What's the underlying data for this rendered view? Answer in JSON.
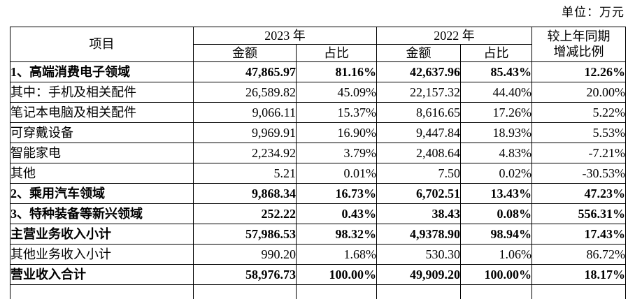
{
  "unit_label": "单位：万元",
  "table": {
    "header": {
      "item": "项目",
      "year_2023": "2023 年",
      "year_2022": "2022 年",
      "amount": "金额",
      "ratio": "占比",
      "yoy_line1": "较上年同期",
      "yoy_line2": "增减比例"
    },
    "rows": [
      {
        "item": "1、高端消费电子领域",
        "amount_2023": "47,865.97",
        "ratio_2023": "81.16%",
        "amount_2022": "42,637.96",
        "ratio_2022": "85.43%",
        "yoy": "12.26%",
        "bold": true
      },
      {
        "item": "其中：手机及相关配件",
        "amount_2023": "26,589.82",
        "ratio_2023": "45.09%",
        "amount_2022": "22,157.32",
        "ratio_2022": "44.40%",
        "yoy": "20.00%",
        "bold": false
      },
      {
        "item": "笔记本电脑及相关配件",
        "amount_2023": "9,066.11",
        "ratio_2023": "15.37%",
        "amount_2022": "8,616.65",
        "ratio_2022": "17.26%",
        "yoy": "5.22%",
        "bold": false
      },
      {
        "item": "可穿戴设备",
        "amount_2023": "9,969.91",
        "ratio_2023": "16.90%",
        "amount_2022": "9,447.84",
        "ratio_2022": "18.93%",
        "yoy": "5.53%",
        "bold": false
      },
      {
        "item": "智能家电",
        "amount_2023": "2,234.92",
        "ratio_2023": "3.79%",
        "amount_2022": "2,408.64",
        "ratio_2022": "4.83%",
        "yoy": "-7.21%",
        "bold": false
      },
      {
        "item": "其他",
        "amount_2023": "5.21",
        "ratio_2023": "0.01%",
        "amount_2022": "7.50",
        "ratio_2022": "0.02%",
        "yoy": "-30.53%",
        "bold": false
      },
      {
        "item": "2、乘用汽车领域",
        "amount_2023": "9,868.34",
        "ratio_2023": "16.73%",
        "amount_2022": "6,702.51",
        "ratio_2022": "13.43%",
        "yoy": "47.23%",
        "bold": true
      },
      {
        "item": "3、特种装备等新兴领域",
        "amount_2023": "252.22",
        "ratio_2023": "0.43%",
        "amount_2022": "38.43",
        "ratio_2022": "0.08%",
        "yoy": "556.31%",
        "bold": true
      },
      {
        "item": "主营业务收入小计",
        "amount_2023": "57,986.53",
        "ratio_2023": "98.32%",
        "amount_2022": "4,9378.90",
        "ratio_2022": "98.94%",
        "yoy": "17.43%",
        "bold": true
      },
      {
        "item": "其他业务收入小计",
        "amount_2023": "990.20",
        "ratio_2023": "1.68%",
        "amount_2022": "530.30",
        "ratio_2022": "1.06%",
        "yoy": "86.72%",
        "bold": false
      },
      {
        "item": "营业收入合计",
        "amount_2023": "58,976.73",
        "ratio_2023": "100.00%",
        "amount_2022": "49,909.20",
        "ratio_2022": "100.00%",
        "yoy": "18.17%",
        "bold": true
      }
    ]
  }
}
